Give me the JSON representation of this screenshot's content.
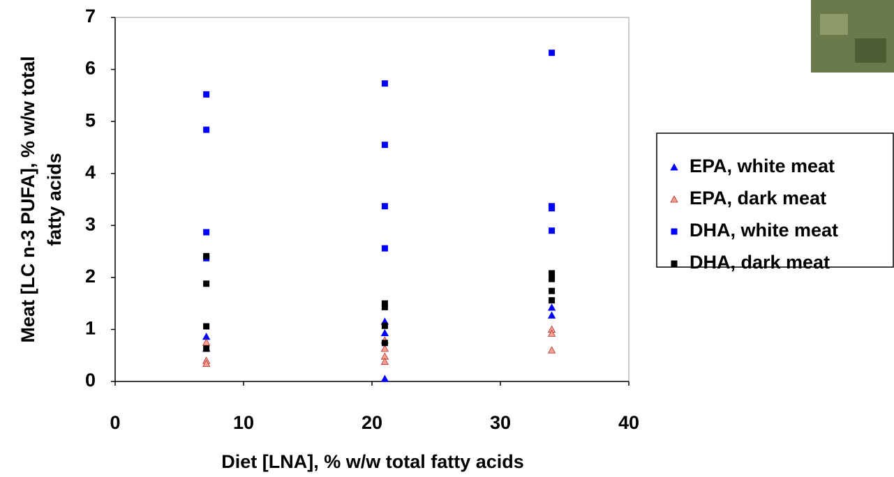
{
  "chart_data": {
    "type": "scatter",
    "xlabel": "Diet [LNA], % w/w total fatty acids",
    "ylabel": [
      "Meat [LC n-3 PUFA], % w/w total",
      "fatty acids"
    ],
    "xlim": [
      0,
      40
    ],
    "xticks": [
      0,
      10,
      20,
      30,
      40
    ],
    "ylim": [
      0,
      7
    ],
    "yticks": [
      0,
      1,
      2,
      3,
      4,
      5,
      6,
      7
    ],
    "legend": "right",
    "series": [
      {
        "name": "EPA, white meat",
        "color": "#0000ff",
        "marker": "triangle",
        "x": [
          7.1,
          7.1,
          21,
          21,
          21,
          34,
          34
        ],
        "values": [
          0.86,
          0.63,
          1.15,
          0.93,
          0.05,
          1.42,
          1.27
        ]
      },
      {
        "name": "EPA, dark meat",
        "color": "#ff9f8f",
        "marker": "triangle",
        "x": [
          7.1,
          7.1,
          7.1,
          21,
          21,
          21,
          21,
          34,
          34,
          34
        ],
        "values": [
          0.75,
          0.4,
          0.34,
          0.79,
          0.63,
          0.48,
          0.38,
          1.0,
          0.92,
          0.6
        ]
      },
      {
        "name": "DHA, white meat",
        "color": "#0000ff",
        "marker": "square",
        "x": [
          7.1,
          7.1,
          7.1,
          7.1,
          21,
          21,
          21,
          21,
          34,
          34,
          34,
          34
        ],
        "values": [
          5.52,
          4.84,
          2.87,
          2.37,
          5.73,
          4.55,
          3.37,
          2.56,
          6.32,
          3.37,
          3.33,
          2.9
        ]
      },
      {
        "name": "DHA, dark meat",
        "color": "#000000",
        "marker": "square",
        "x": [
          7.1,
          7.1,
          7.1,
          7.1,
          21,
          21,
          21,
          21,
          34,
          34,
          34,
          34
        ],
        "values": [
          2.41,
          1.88,
          1.06,
          0.63,
          1.5,
          1.43,
          1.07,
          0.74,
          2.08,
          1.97,
          1.74,
          1.56
        ]
      }
    ]
  }
}
